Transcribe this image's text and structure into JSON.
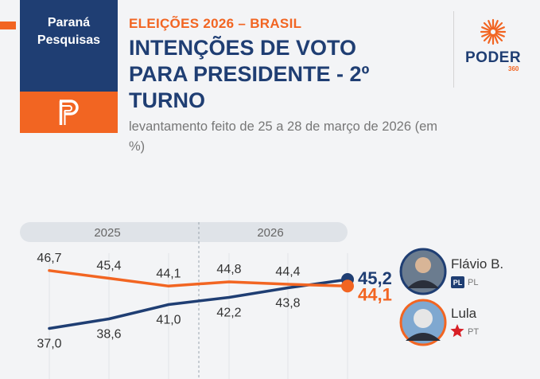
{
  "brand": {
    "name": "Paraná\nPesquisas"
  },
  "header": {
    "kicker": "ELEIÇÕES 2026 – BRASIL",
    "title": "INTENÇÕES DE VOTO PARA PRESIDENTE - 2º TURNO",
    "subtitle": "levantamento feito de 25 a 28 de março de 2026 (em %)"
  },
  "publisher": {
    "word": "PODER",
    "number": "360"
  },
  "colors": {
    "navy": "#1f3e73",
    "orange": "#f26522"
  },
  "chart_data": {
    "type": "line",
    "periods": [
      "2025",
      "2026"
    ],
    "x": [
      1,
      2,
      3,
      4,
      5,
      6
    ],
    "ylim": [
      36,
      48
    ],
    "series": [
      {
        "name": "Flávio B.",
        "party": "PL",
        "color": "#1f3e73",
        "values": [
          37.0,
          38.6,
          41.0,
          42.2,
          43.8,
          45.2
        ],
        "labels": [
          "37,0",
          "38,6",
          "41,0",
          "42,2",
          "43,8",
          "45,2"
        ]
      },
      {
        "name": "Lula",
        "party": "PT",
        "color": "#f26522",
        "values": [
          46.7,
          45.4,
          44.1,
          44.8,
          44.4,
          44.1
        ],
        "labels": [
          "46,7",
          "45,4",
          "44,1",
          "44,8",
          "44,4",
          "44,1"
        ]
      }
    ]
  }
}
